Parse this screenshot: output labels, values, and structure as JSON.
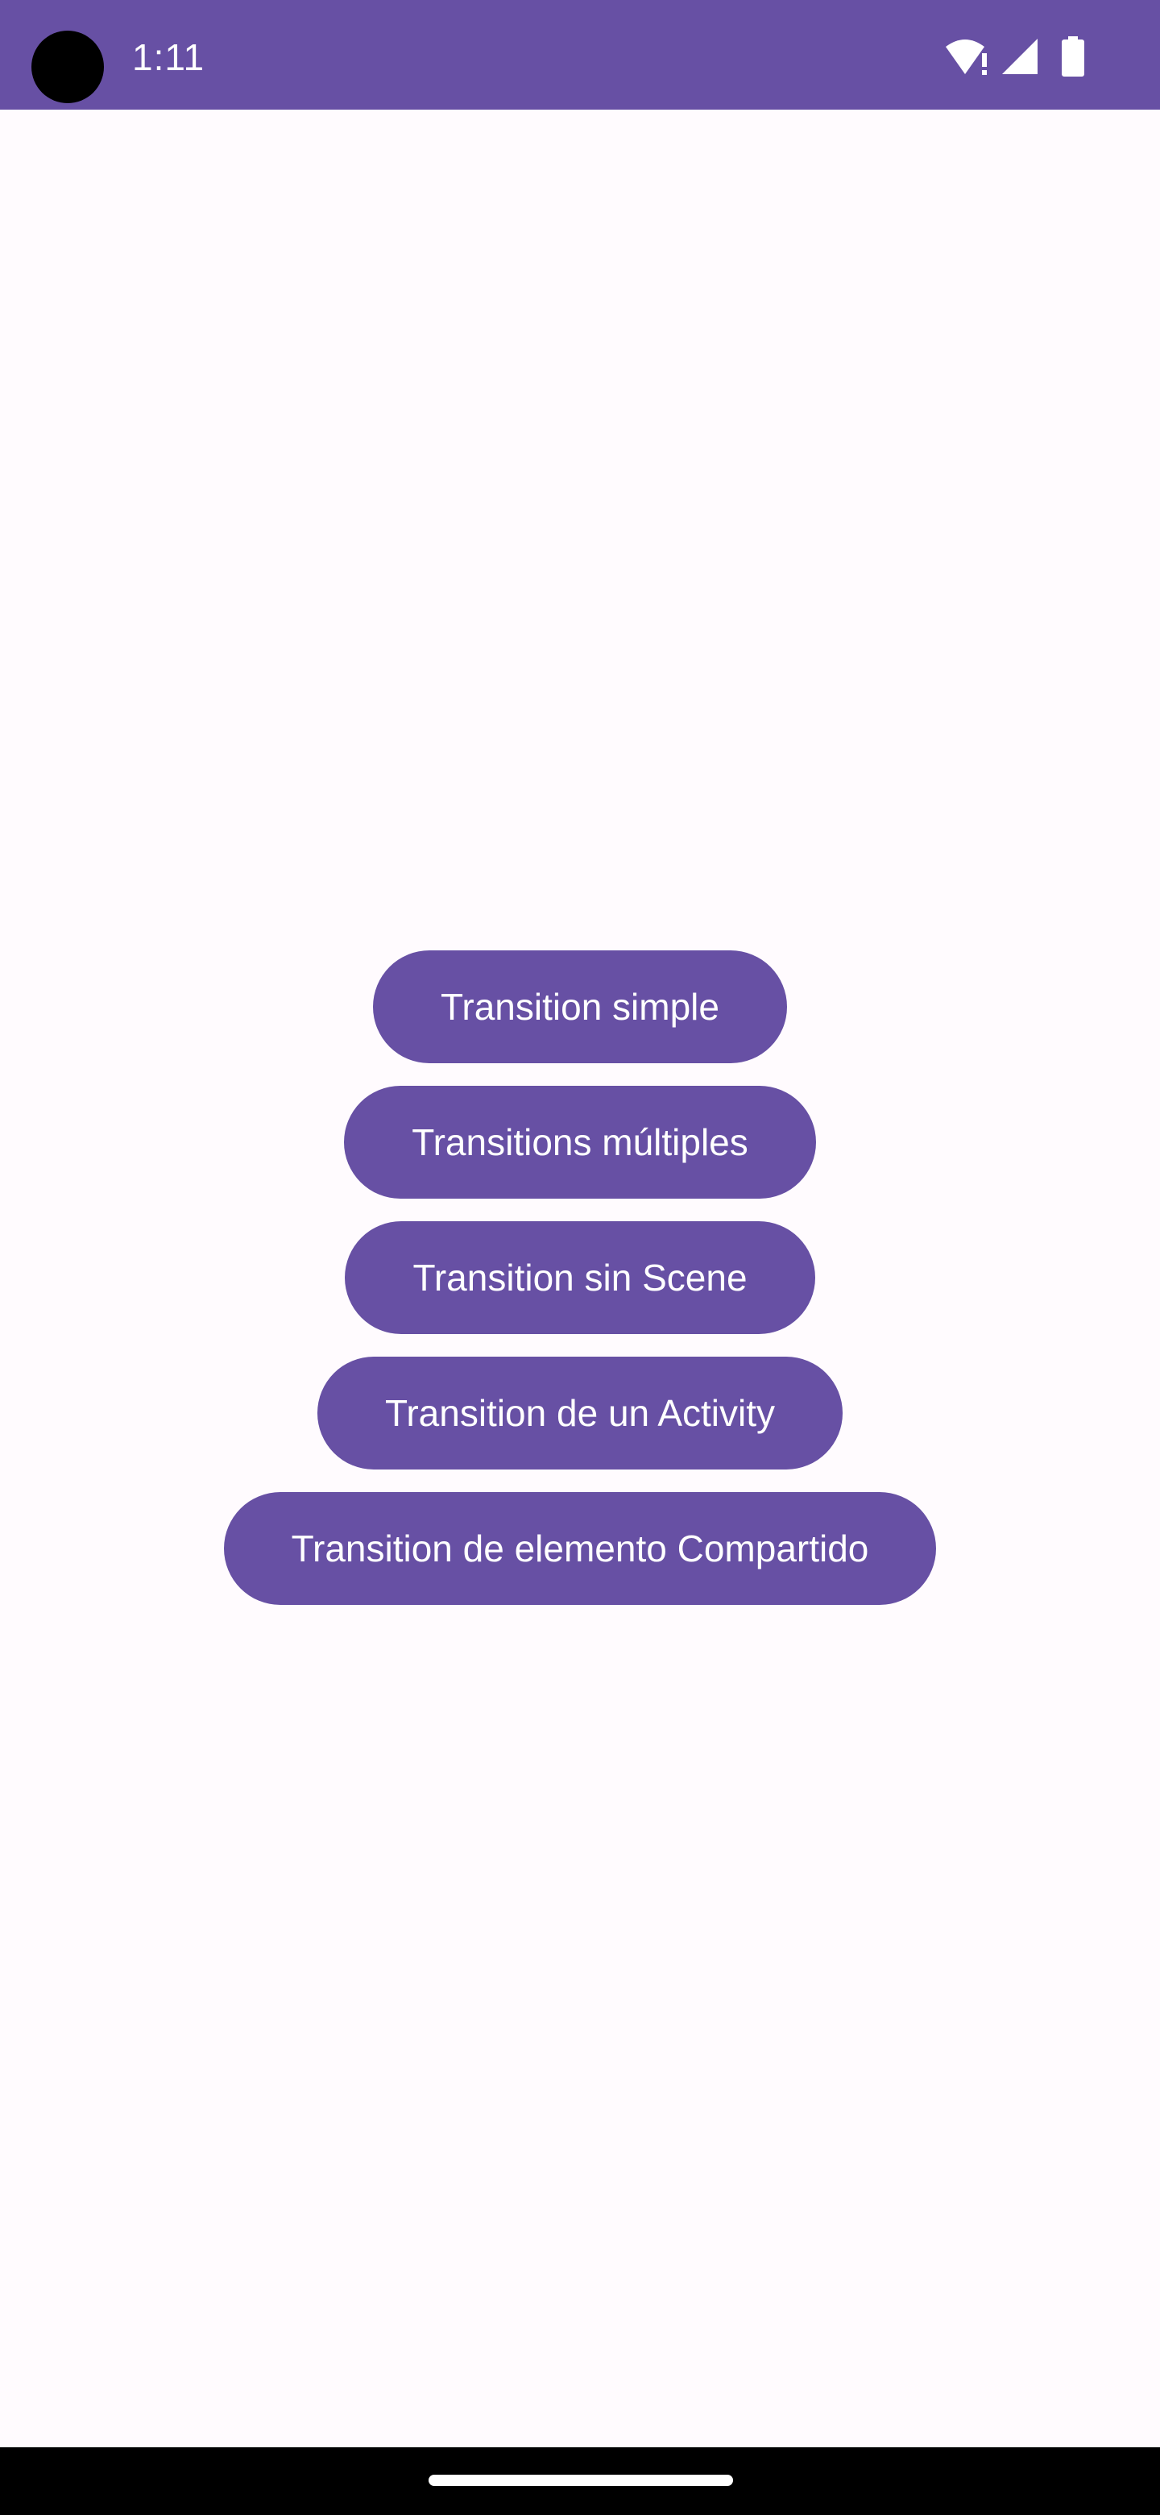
{
  "status_bar": {
    "time": "1:11",
    "icons": [
      "wifi-alert-icon",
      "cellular-signal-icon",
      "battery-icon"
    ],
    "background_color": "#6750a4"
  },
  "main": {
    "buttons": [
      {
        "label": "Transition simple"
      },
      {
        "label": "Transitions múltiples"
      },
      {
        "label": "Transition sin Scene"
      },
      {
        "label": "Transition de un Activity"
      },
      {
        "label": "Transition de elemento Compartido"
      }
    ],
    "button_color": "#6750a4",
    "button_text_color": "#ffffff",
    "background_color": "#fffbfe"
  },
  "nav_bar": {
    "handle": "gesture-handle"
  }
}
